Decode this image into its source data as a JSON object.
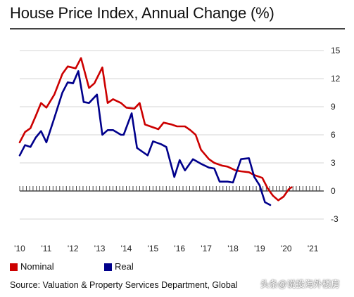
{
  "chart_data": {
    "type": "line",
    "title": "House Price Index, Annual Change (%)",
    "source": "Source: Valuation & Property Services Department, Global",
    "x_tick_labels": [
      "'10",
      "'11",
      "'12",
      "'13",
      "'14",
      "'15",
      "'16",
      "'17",
      "'18",
      "'19",
      "'20",
      "'21"
    ],
    "x_range": [
      2010,
      2021.3
    ],
    "ylim": [
      -3,
      15
    ],
    "y_ticks": [
      15,
      12,
      9,
      6,
      3,
      0,
      -3
    ],
    "y_axis_side": "right",
    "grid": "horizontal",
    "legend_position": "bottom-left",
    "series": [
      {
        "name": "Nominal",
        "color": "#cc0000",
        "points": [
          [
            2010.0,
            5.2
          ],
          [
            2010.2,
            6.3
          ],
          [
            2010.4,
            6.7
          ],
          [
            2010.6,
            8.0
          ],
          [
            2010.8,
            9.4
          ],
          [
            2011.0,
            8.9
          ],
          [
            2011.3,
            10.3
          ],
          [
            2011.6,
            12.5
          ],
          [
            2011.8,
            13.3
          ],
          [
            2012.1,
            13.1
          ],
          [
            2012.3,
            14.2
          ],
          [
            2012.6,
            11.0
          ],
          [
            2012.8,
            11.5
          ],
          [
            2013.1,
            13.2
          ],
          [
            2013.3,
            9.4
          ],
          [
            2013.5,
            9.8
          ],
          [
            2013.8,
            9.4
          ],
          [
            2014.0,
            8.9
          ],
          [
            2014.3,
            8.8
          ],
          [
            2014.5,
            9.4
          ],
          [
            2014.7,
            7.1
          ],
          [
            2014.9,
            6.9
          ],
          [
            2015.2,
            6.6
          ],
          [
            2015.4,
            7.3
          ],
          [
            2015.7,
            7.1
          ],
          [
            2015.9,
            6.9
          ],
          [
            2016.2,
            6.9
          ],
          [
            2016.4,
            6.5
          ],
          [
            2016.6,
            6.0
          ],
          [
            2016.8,
            4.4
          ],
          [
            2017.1,
            3.4
          ],
          [
            2017.3,
            3.0
          ],
          [
            2017.6,
            2.7
          ],
          [
            2017.8,
            2.6
          ],
          [
            2018.1,
            2.2
          ],
          [
            2018.3,
            2.1
          ],
          [
            2018.6,
            2.0
          ],
          [
            2018.8,
            1.7
          ],
          [
            2019.1,
            1.4
          ],
          [
            2019.3,
            0.3
          ],
          [
            2019.5,
            -0.5
          ],
          [
            2019.7,
            -1.0
          ],
          [
            2019.9,
            -0.6
          ],
          [
            2020.1,
            0.2
          ],
          [
            2020.2,
            0.4
          ]
        ]
      },
      {
        "name": "Real",
        "color": "#00008b",
        "points": [
          [
            2010.0,
            3.8
          ],
          [
            2010.2,
            4.9
          ],
          [
            2010.4,
            4.7
          ],
          [
            2010.6,
            5.7
          ],
          [
            2010.8,
            6.4
          ],
          [
            2011.0,
            5.2
          ],
          [
            2011.3,
            7.8
          ],
          [
            2011.6,
            10.5
          ],
          [
            2011.8,
            11.6
          ],
          [
            2012.0,
            11.5
          ],
          [
            2012.2,
            12.8
          ],
          [
            2012.4,
            9.5
          ],
          [
            2012.6,
            9.4
          ],
          [
            2012.9,
            10.3
          ],
          [
            2013.1,
            6.0
          ],
          [
            2013.3,
            6.5
          ],
          [
            2013.5,
            6.5
          ],
          [
            2013.8,
            6.0
          ],
          [
            2013.9,
            6.0
          ],
          [
            2014.2,
            8.3
          ],
          [
            2014.4,
            4.6
          ],
          [
            2014.6,
            4.2
          ],
          [
            2014.8,
            3.8
          ],
          [
            2015.0,
            5.3
          ],
          [
            2015.3,
            5.0
          ],
          [
            2015.5,
            4.7
          ],
          [
            2015.8,
            1.5
          ],
          [
            2016.0,
            3.3
          ],
          [
            2016.2,
            2.2
          ],
          [
            2016.5,
            3.4
          ],
          [
            2016.8,
            2.9
          ],
          [
            2017.1,
            2.5
          ],
          [
            2017.3,
            2.4
          ],
          [
            2017.5,
            1.0
          ],
          [
            2017.8,
            1.0
          ],
          [
            2018.0,
            0.9
          ],
          [
            2018.3,
            3.4
          ],
          [
            2018.6,
            3.5
          ],
          [
            2018.8,
            1.5
          ],
          [
            2019.0,
            0.6
          ],
          [
            2019.2,
            -1.2
          ],
          [
            2019.4,
            -1.5
          ]
        ]
      }
    ]
  },
  "watermark": "头条@说投海外楼房"
}
